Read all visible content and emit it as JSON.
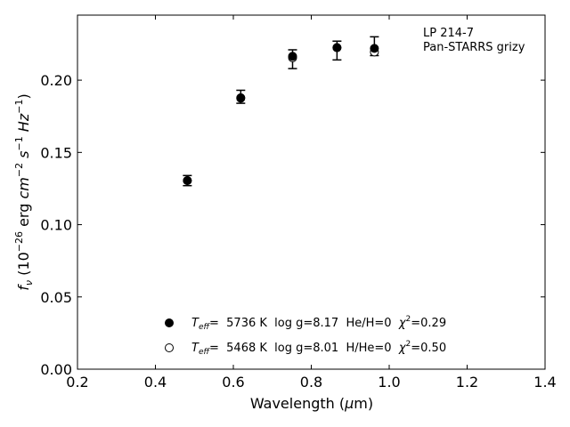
{
  "chart_data": {
    "type": "scatter",
    "xlabel": {
      "pre": "Wavelength (",
      "mu": "μ",
      "post": "m)"
    },
    "ylabel": {
      "f": "f",
      "nu": "ν",
      "rest": " (10",
      "exp": "−26",
      "erg": " erg ",
      "cm": "cm",
      "cmexp": "−2",
      "s": " s",
      "sexp": "−1",
      "hz": " Hz",
      "hzexp": "−1",
      "close": ")"
    },
    "xlim": [
      0.2,
      1.4
    ],
    "ylim": [
      0.0,
      0.245
    ],
    "xticks": [
      "0.2",
      "0.4",
      "0.6",
      "0.8",
      "1.0",
      "1.2",
      "1.4"
    ],
    "yticks": [
      "0.00",
      "0.05",
      "0.10",
      "0.15",
      "0.20"
    ],
    "annotation": [
      "LP 214-7",
      "Pan-STARRS grizy"
    ],
    "observed": {
      "x": [
        0.482,
        0.619,
        0.752,
        0.866,
        0.962
      ],
      "y": [
        0.1305,
        0.1885,
        0.2145,
        0.2205,
        0.2235
      ],
      "yerr": [
        0.0035,
        0.0045,
        0.0065,
        0.0065,
        0.0065
      ]
    },
    "series": [
      {
        "legend": {
          "teff": "T",
          "eff": "eff",
          "eq": "=  5736 K  log g=8.17  He/H=0  ",
          "chi": "χ",
          "chi_exp": "2",
          "chi_val": "=0.29"
        },
        "marker": "filled",
        "x": [
          0.482,
          0.619,
          0.752,
          0.866,
          0.962
        ],
        "y": [
          0.1305,
          0.1878,
          0.2165,
          0.2225,
          0.222
        ]
      },
      {
        "legend": {
          "teff": "T",
          "eff": "eff",
          "eq": "=  5468 K  log g=8.01  H/He=0  ",
          "chi": "χ",
          "chi_exp": "2",
          "chi_val": "=0.50"
        },
        "marker": "open",
        "x": [
          0.482,
          0.619,
          0.752,
          0.866,
          0.962
        ],
        "y": [
          0.1305,
          0.1875,
          0.2155,
          0.2225,
          0.2195
        ]
      }
    ]
  }
}
